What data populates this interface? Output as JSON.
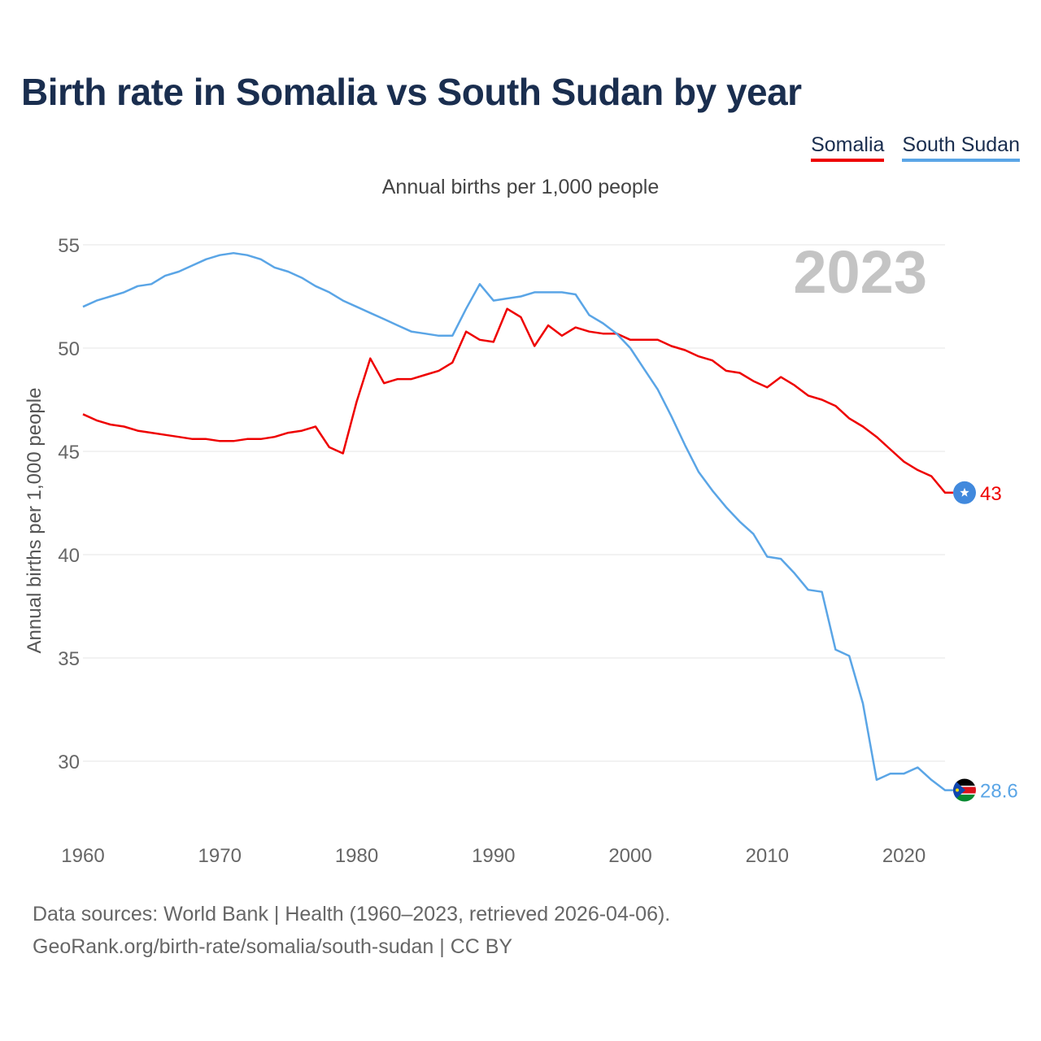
{
  "title": "Birth rate in Somalia vs South Sudan by year",
  "subtitle": "Annual births per 1,000 people",
  "legend": [
    {
      "label": "Somalia",
      "color": "#ee0000"
    },
    {
      "label": "South Sudan",
      "color": "#5aa5e6"
    }
  ],
  "year_watermark": "2023",
  "footer": {
    "line1": "Data sources: World Bank | Health (1960–2023, retrieved 2026-04-06).",
    "line2": "GeoRank.org/birth-rate/somalia/south-sudan | CC BY"
  },
  "chart_data": {
    "type": "line",
    "title": "Birth rate in Somalia vs South Sudan by year",
    "xlabel": "",
    "ylabel": "Annual births per 1,000 people",
    "xlim": [
      1960,
      2023
    ],
    "ylim": [
      27,
      56
    ],
    "x_ticks": [
      1960,
      1970,
      1980,
      1990,
      2000,
      2010,
      2020
    ],
    "y_ticks": [
      30,
      35,
      40,
      45,
      50,
      55
    ],
    "grid": true,
    "legend_position": "top-right",
    "x": [
      1960,
      1961,
      1962,
      1963,
      1964,
      1965,
      1966,
      1967,
      1968,
      1969,
      1970,
      1971,
      1972,
      1973,
      1974,
      1975,
      1976,
      1977,
      1978,
      1979,
      1980,
      1981,
      1982,
      1983,
      1984,
      1985,
      1986,
      1987,
      1988,
      1989,
      1990,
      1991,
      1992,
      1993,
      1994,
      1995,
      1996,
      1997,
      1998,
      1999,
      2000,
      2001,
      2002,
      2003,
      2004,
      2005,
      2006,
      2007,
      2008,
      2009,
      2010,
      2011,
      2012,
      2013,
      2014,
      2015,
      2016,
      2017,
      2018,
      2019,
      2020,
      2021,
      2022,
      2023
    ],
    "series": [
      {
        "name": "Somalia",
        "color": "#ee0000",
        "end_label": "43",
        "values": [
          46.8,
          46.5,
          46.3,
          46.2,
          46.0,
          45.9,
          45.8,
          45.7,
          45.6,
          45.6,
          45.5,
          45.5,
          45.6,
          45.6,
          45.7,
          45.9,
          46.0,
          46.2,
          45.2,
          44.9,
          47.4,
          49.5,
          48.3,
          48.5,
          48.5,
          48.7,
          48.9,
          49.3,
          50.8,
          50.4,
          50.3,
          51.9,
          51.5,
          50.1,
          51.1,
          50.6,
          51.0,
          50.8,
          50.7,
          50.7,
          50.4,
          50.4,
          50.4,
          50.1,
          49.9,
          49.6,
          49.4,
          48.9,
          48.8,
          48.4,
          48.1,
          48.6,
          48.2,
          47.7,
          47.5,
          47.2,
          46.6,
          46.2,
          45.7,
          45.1,
          44.5,
          44.1,
          43.8,
          43.0
        ]
      },
      {
        "name": "South Sudan",
        "color": "#5aa5e6",
        "end_label": "28.6",
        "values": [
          52.0,
          52.3,
          52.5,
          52.7,
          53.0,
          53.1,
          53.5,
          53.7,
          54.0,
          54.3,
          54.5,
          54.6,
          54.5,
          54.3,
          53.9,
          53.7,
          53.4,
          53.0,
          52.7,
          52.3,
          52.0,
          51.7,
          51.4,
          51.1,
          50.8,
          50.7,
          50.6,
          50.6,
          51.9,
          53.1,
          52.3,
          52.4,
          52.5,
          52.7,
          52.7,
          52.7,
          52.6,
          51.6,
          51.2,
          50.7,
          50.0,
          49.0,
          48.0,
          46.7,
          45.3,
          44.0,
          43.1,
          42.3,
          41.6,
          41.0,
          39.9,
          39.8,
          39.1,
          38.3,
          38.2,
          35.4,
          35.1,
          32.8,
          29.1,
          29.4,
          29.4,
          29.7,
          29.1,
          28.6
        ]
      }
    ]
  }
}
